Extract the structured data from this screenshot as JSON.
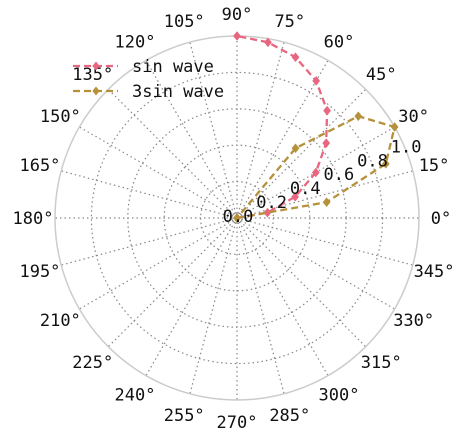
{
  "chart_data": {
    "type": "line",
    "projection": "polar",
    "angle_unit": "degrees",
    "rlim": [
      0,
      1.0
    ],
    "grid": true,
    "legend_position": "top-left",
    "angle_ticks": [
      0,
      15,
      30,
      45,
      60,
      75,
      90,
      105,
      120,
      135,
      150,
      165,
      180,
      195,
      210,
      225,
      240,
      255,
      270,
      285,
      300,
      315,
      330,
      345
    ],
    "angle_tick_labels": [
      "0°",
      "15°",
      "30°",
      "45°",
      "60°",
      "75°",
      "90°",
      "105°",
      "120°",
      "135°",
      "150°",
      "165°",
      "180°",
      "195°",
      "210°",
      "225°",
      "240°",
      "255°",
      "270°",
      "285°",
      "300°",
      "315°",
      "330°",
      "345°"
    ],
    "r_ticks": [
      0.0,
      0.2,
      0.4,
      0.6,
      0.8,
      1.0
    ],
    "r_tick_labels": [
      "0.0",
      "0.2",
      "0.4",
      "0.6",
      "0.8",
      "1.0"
    ],
    "series": [
      {
        "name": "sin wave",
        "color": "#e8667f",
        "linestyle": "dashed",
        "marker": "diamond",
        "theta": [
          0,
          10,
          20,
          30,
          40,
          50,
          60,
          70,
          80,
          90
        ],
        "r": [
          0.0,
          0.17,
          0.34,
          0.5,
          0.64,
          0.77,
          0.87,
          0.94,
          0.98,
          1.0
        ]
      },
      {
        "name": "3sin wave",
        "color": "#b5913a",
        "linestyle": "dashed",
        "marker": "diamond",
        "theta": [
          0,
          10,
          20,
          30,
          40,
          50,
          60,
          70,
          80,
          90
        ],
        "r": [
          0.0,
          0.5,
          0.87,
          1.0,
          0.87,
          0.5,
          0.0,
          0.0,
          0.0,
          0.0
        ]
      }
    ]
  }
}
